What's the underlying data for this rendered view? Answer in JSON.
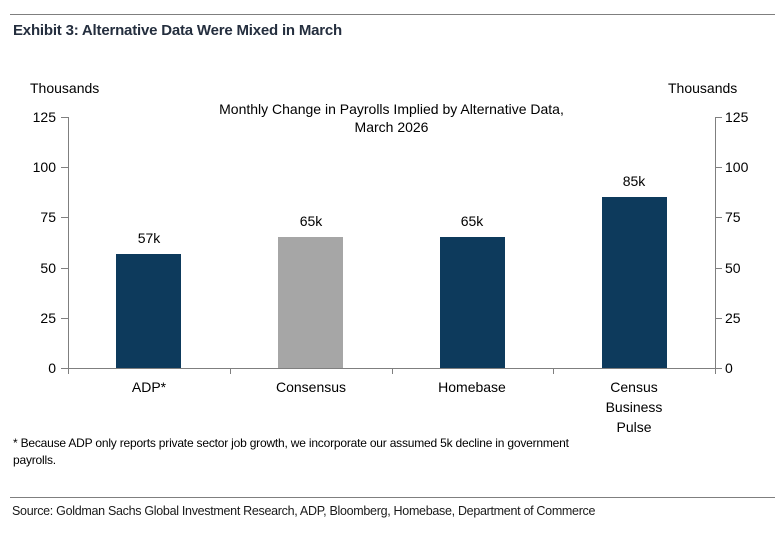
{
  "exhibit": {
    "title": "Exhibit 3: Alternative Data Were Mixed in March"
  },
  "axes": {
    "left_unit": "Thousands",
    "right_unit": "Thousands"
  },
  "chart_data": {
    "type": "bar",
    "title": "Monthly Change in Payrolls Implied by Alternative Data,\nMarch 2026",
    "categories": [
      "ADP*",
      "Consensus",
      "Homebase",
      "Census\nBusiness\nPulse"
    ],
    "values": [
      57,
      65,
      65,
      85
    ],
    "value_labels": [
      "57k",
      "65k",
      "65k",
      "85k"
    ],
    "bar_colors": [
      "#0d3a5c",
      "#a6a6a6",
      "#0d3a5c",
      "#0d3a5c"
    ],
    "ylabel_left": "Thousands",
    "ylabel_right": "Thousands",
    "ylim": [
      0,
      125
    ],
    "yticks": [
      0,
      25,
      50,
      75,
      100,
      125
    ],
    "grid": "off",
    "legend": "none"
  },
  "colors": {
    "navy": "#0d3a5c",
    "gray": "#a6a6a6",
    "axis": "#7f7f7f",
    "heading": "#242e3e",
    "rule": "#7f7f7f"
  },
  "footnote": "* Because ADP only reports private sector job growth, we incorporate our assumed 5k decline in government\npayrolls.",
  "source": "Source: Goldman Sachs Global Investment Research, ADP, Bloomberg, Homebase, Department of Commerce"
}
